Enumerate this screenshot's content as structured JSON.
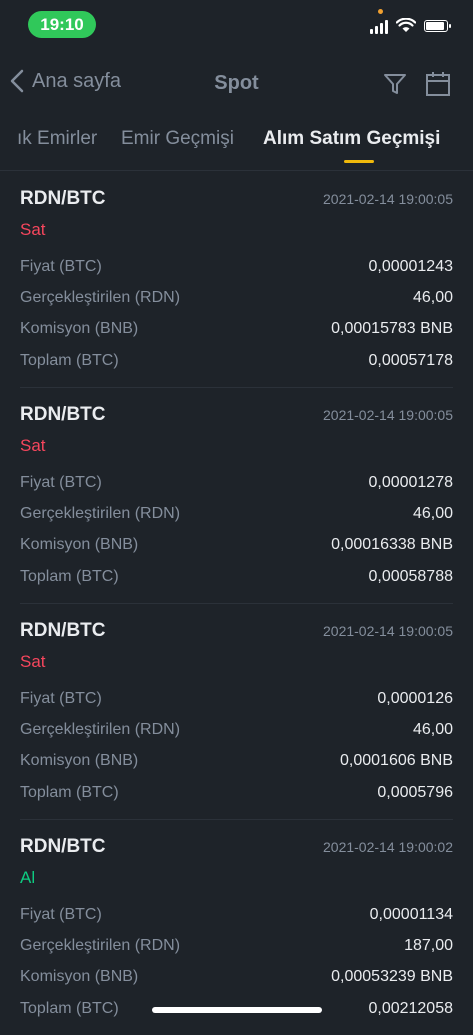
{
  "status_bar": {
    "time": "19:10"
  },
  "nav": {
    "back_label": "Ana sayfa",
    "title": "Spot"
  },
  "tabs": [
    {
      "label": "ık Emirler"
    },
    {
      "label": "Emir Geçmişi"
    },
    {
      "label": "Alım Satım Geçmişi",
      "active": true
    }
  ],
  "row_labels": {
    "price": "Fiyat (BTC)",
    "filled": "Gerçekleştirilen (RDN)",
    "fee": "Komisyon (BNB)",
    "total": "Toplam (BTC)"
  },
  "trades": [
    {
      "pair": "RDN/BTC",
      "date": "2021-02-14 19:00:05",
      "side": "Sat",
      "price": "0,00001243",
      "filled": "46,00",
      "fee": "0,00015783 BNB",
      "total": "0,00057178"
    },
    {
      "pair": "RDN/BTC",
      "date": "2021-02-14 19:00:05",
      "side": "Sat",
      "price": "0,00001278",
      "filled": "46,00",
      "fee": "0,00016338 BNB",
      "total": "0,00058788"
    },
    {
      "pair": "RDN/BTC",
      "date": "2021-02-14 19:00:05",
      "side": "Sat",
      "price": "0,0000126",
      "filled": "46,00",
      "fee": "0,0001606 BNB",
      "total": "0,0005796"
    },
    {
      "pair": "RDN/BTC",
      "date": "2021-02-14 19:00:02",
      "side": "Al",
      "price": "0,00001134",
      "filled": "187,00",
      "fee": "0,00053239 BNB",
      "total": "0,00212058"
    }
  ],
  "colors": {
    "sell": "#f6465d",
    "buy": "#0ecb81",
    "accent": "#f0b90b"
  }
}
